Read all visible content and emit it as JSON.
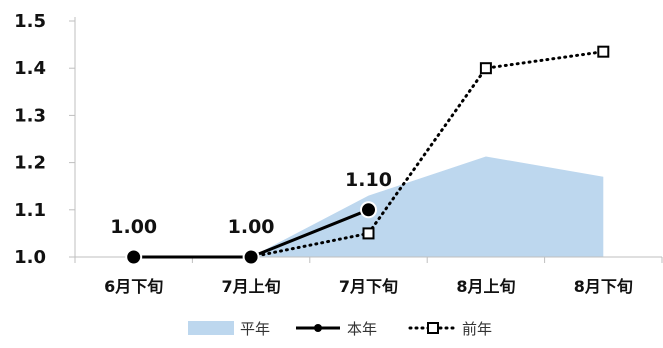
{
  "chart_data": {
    "type": "line",
    "categories": [
      "6月下旬",
      "7月上旬",
      "7月下旬",
      "8月上旬",
      "8月下旬"
    ],
    "series": [
      {
        "name": "平年",
        "kind": "area",
        "values": [
          1.0,
          1.0,
          1.13,
          1.213,
          1.17
        ],
        "color": "#bdd7ee"
      },
      {
        "name": "本年",
        "kind": "line-solid-dot",
        "values": [
          1.0,
          1.0,
          1.1,
          null,
          null
        ],
        "color": "#000000",
        "data_labels": [
          "1.00",
          "1.00",
          "1.10",
          null,
          null
        ]
      },
      {
        "name": "前年",
        "kind": "line-dotted-square",
        "values": [
          null,
          1.0,
          1.05,
          1.4,
          1.435
        ],
        "color": "#000000"
      }
    ],
    "ylim": [
      1.0,
      1.5
    ],
    "yticks": [
      "1.0",
      "1.1",
      "1.2",
      "1.3",
      "1.4",
      "1.5"
    ],
    "ytick_values": [
      1.0,
      1.1,
      1.2,
      1.3,
      1.4,
      1.5
    ],
    "grid": false,
    "legend": {
      "position": "bottom",
      "items": [
        "平年",
        "本年",
        "前年"
      ]
    },
    "title": "",
    "xlabel": "",
    "ylabel": ""
  }
}
